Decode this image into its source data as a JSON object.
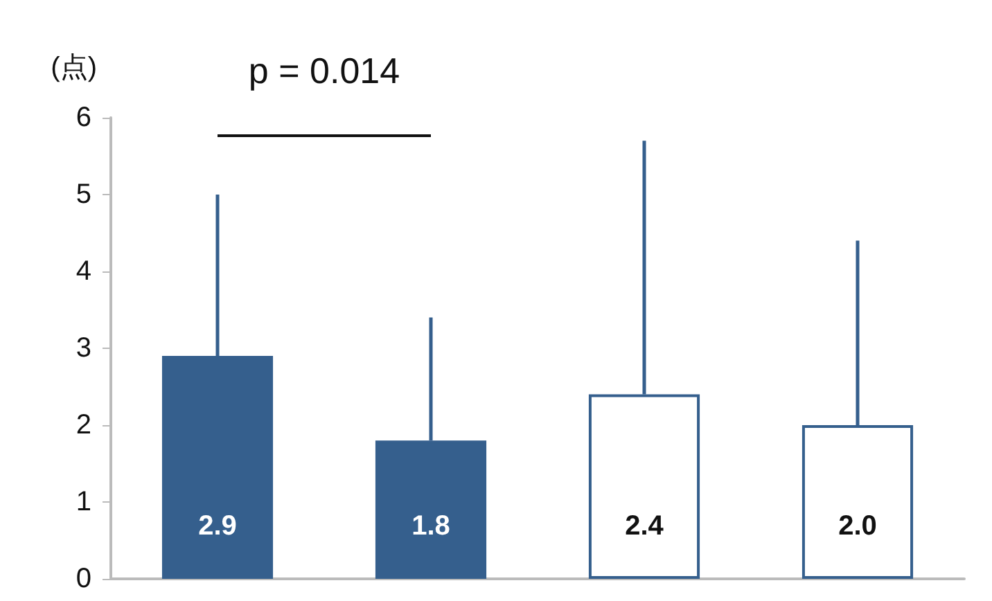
{
  "chart_data": {
    "type": "bar",
    "categories": [
      null,
      null,
      null,
      null
    ],
    "values": [
      2.9,
      1.8,
      2.4,
      2.0
    ],
    "errors": [
      [
        2.9,
        5.0
      ],
      [
        1.8,
        3.4
      ],
      [
        2.4,
        5.7
      ],
      [
        2.0,
        4.4
      ]
    ],
    "color": "#355f8d",
    "colors": [
      "#355f8d",
      "#355f8d",
      "#ffffff",
      "#ffffff"
    ],
    "ylabel": "(点)",
    "ylim": [
      0,
      6
    ],
    "yticks": [
      0,
      1,
      2,
      3,
      4,
      5,
      6
    ],
    "value_labels": [
      "2.9",
      "1.8",
      "2.4",
      "2.0"
    ],
    "grid": false,
    "annotations": [
      "p = 0.014"
    ]
  }
}
